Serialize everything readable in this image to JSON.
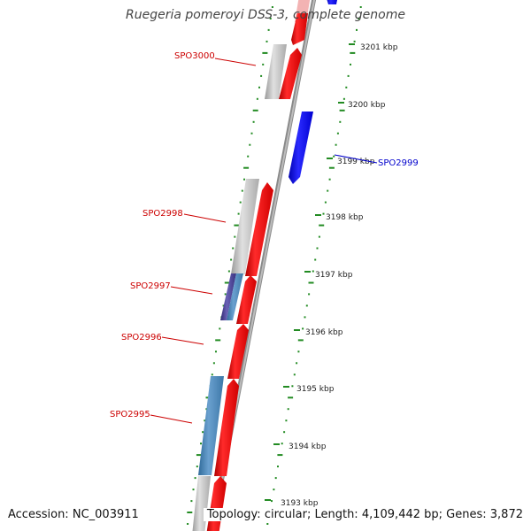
{
  "title": "Ruegeria pomeroyi DSS-3, complete genome",
  "footer": {
    "accession_label": "Accession:",
    "accession": "NC_003911",
    "topology_label": "Topology:",
    "topology": "circular;",
    "length_label": "Length:",
    "length": "4,109,442 bp;",
    "genes_label": "Genes:",
    "genes": "3,872"
  },
  "ruler": {
    "ticks": [
      {
        "label": "3201 kbp"
      },
      {
        "label": "3200 kbp"
      },
      {
        "label": "3199 kbp"
      },
      {
        "label": "3198 kbp"
      },
      {
        "label": "3197 kbp"
      },
      {
        "label": "3196 kbp"
      },
      {
        "label": "3195 kbp"
      },
      {
        "label": "3194 kbp"
      },
      {
        "label": "3193 kbp"
      }
    ]
  },
  "gene_labels": [
    {
      "name": "SPO3000",
      "strand": "forward"
    },
    {
      "name": "SPO2999",
      "strand": "reverse"
    },
    {
      "name": "SPO2998",
      "strand": "forward"
    },
    {
      "name": "SPO2997",
      "strand": "forward"
    },
    {
      "name": "SPO2996",
      "strand": "forward"
    },
    {
      "name": "SPO2995",
      "strand": "forward"
    }
  ],
  "colors": {
    "forward": "#ff0000",
    "reverse": "#0000ff",
    "forward_label": "#cc0000",
    "reverse_label": "#0000cc",
    "backbone": "#888888",
    "tick": "#228b22",
    "cog_gray": "#c0c0c0",
    "cog_steelblue": "#4682b4",
    "cog_darkslate": "#483d8b"
  }
}
